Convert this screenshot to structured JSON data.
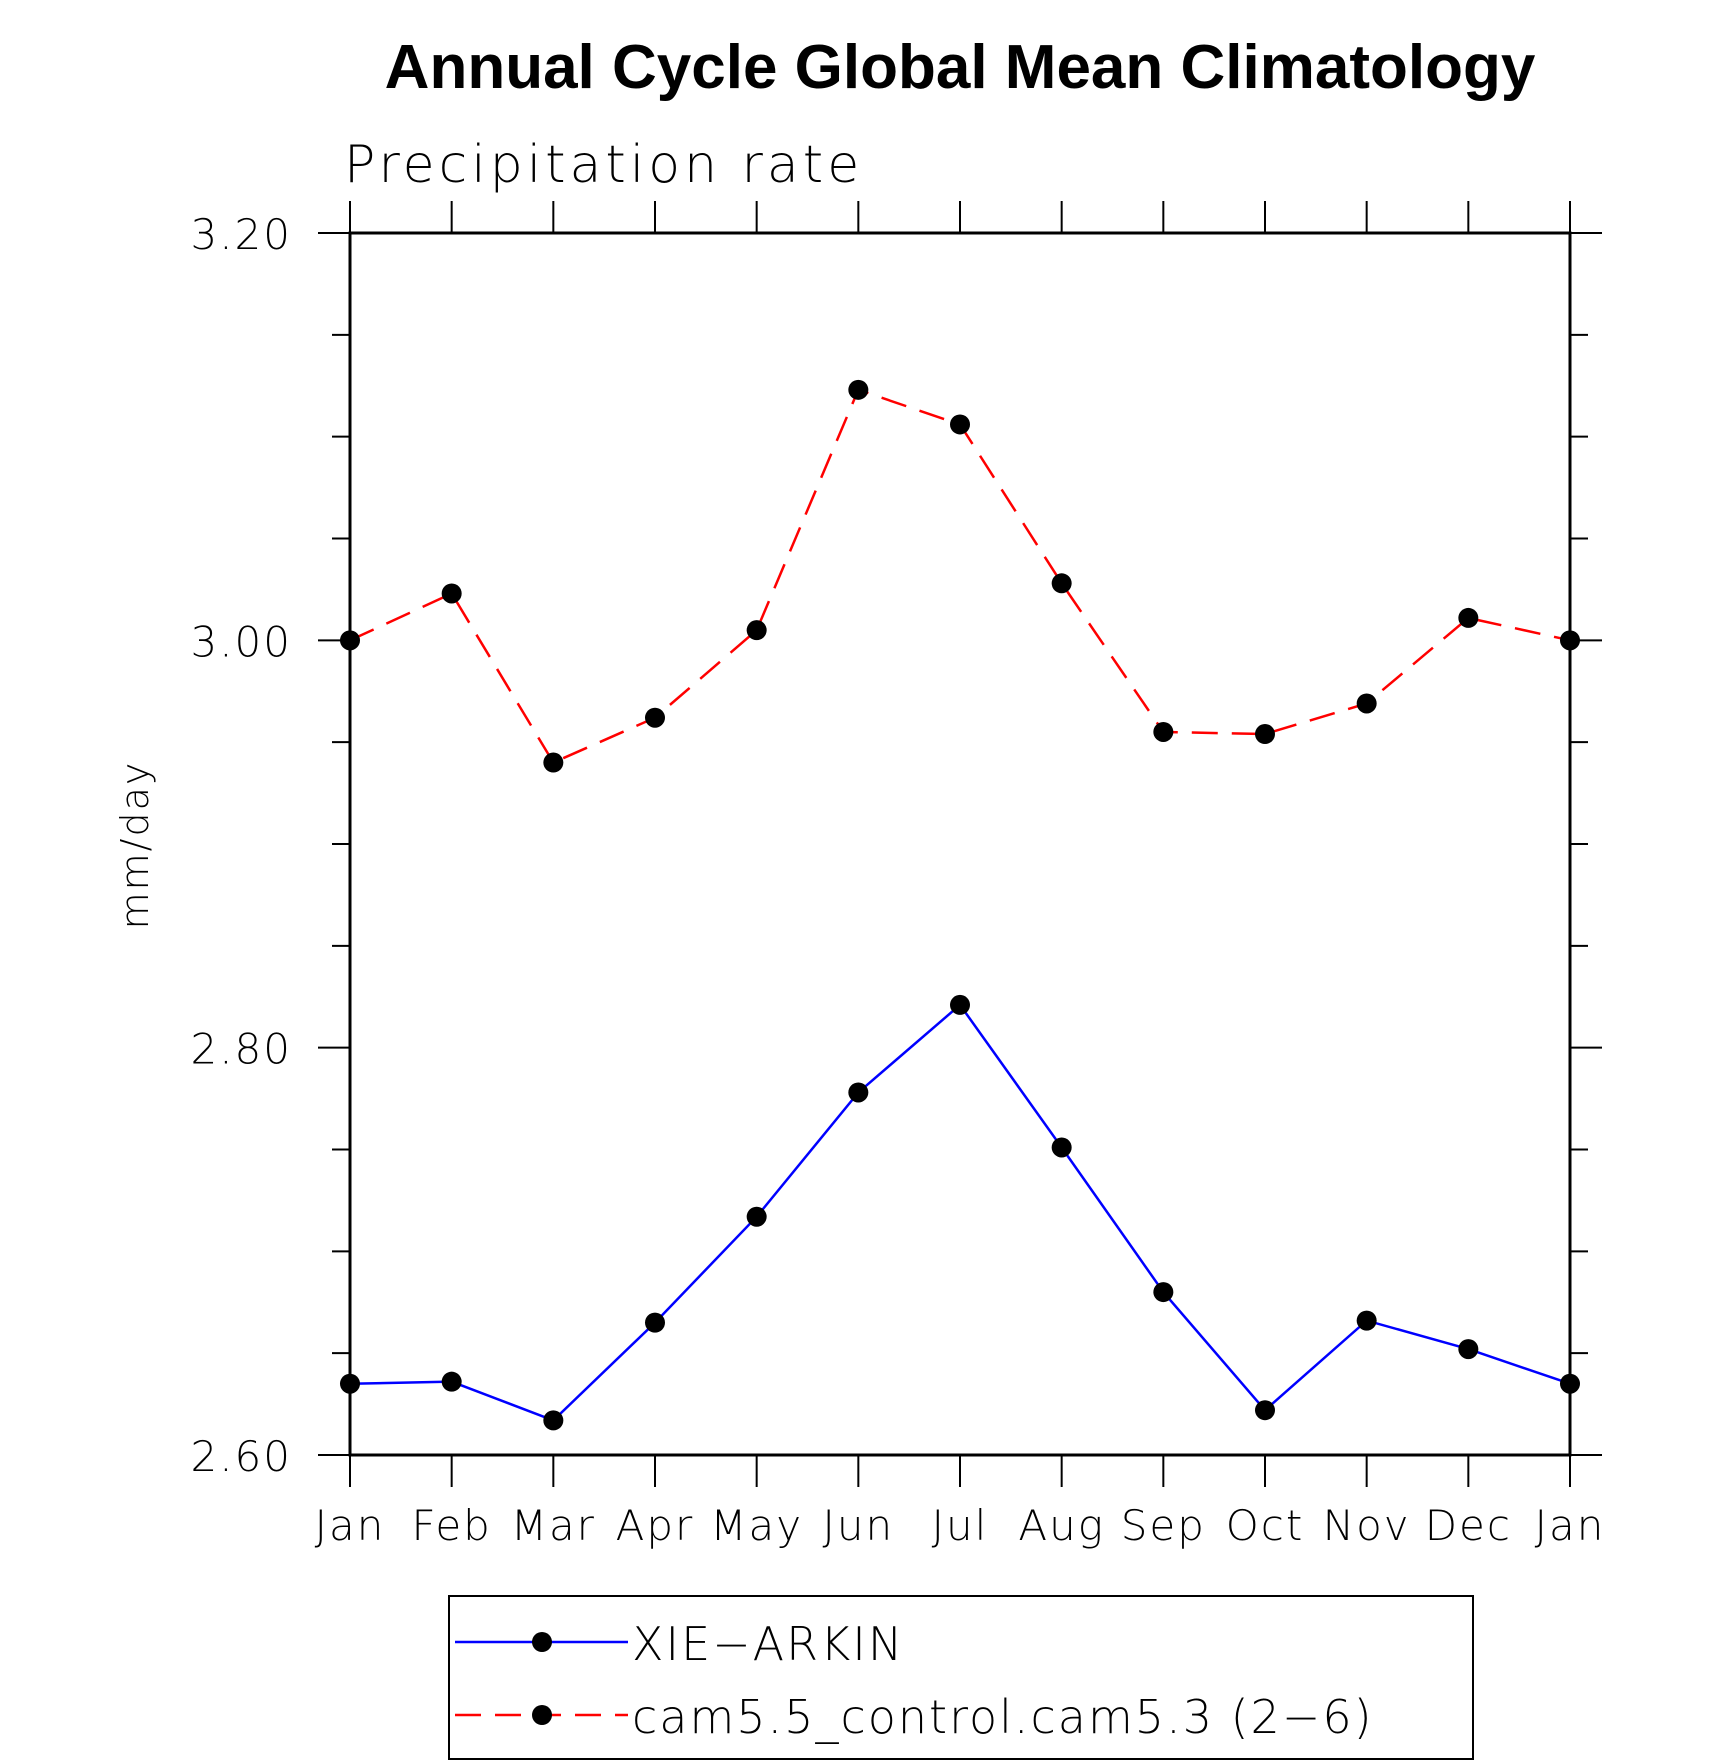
{
  "chart_data": {
    "type": "line",
    "title": "Annual Cycle Global Mean Climatology",
    "subtitle": "Precipitation rate",
    "ylabel": "mm/day",
    "xlabel": "",
    "categories": [
      "Jan",
      "Feb",
      "Mar",
      "Apr",
      "May",
      "Jun",
      "Jul",
      "Aug",
      "Sep",
      "Oct",
      "Nov",
      "Dec",
      "Jan"
    ],
    "ylim": [
      2.6,
      3.2
    ],
    "yticks": [
      "2.60",
      "2.80",
      "3.00",
      "3.20"
    ],
    "y_major_step": 0.2,
    "y_minor_step": 0.05,
    "grid": false,
    "legend_position": "bottom-center",
    "series": [
      {
        "name": "XIE−ARKIN",
        "color": "#0000ff",
        "line_style": "solid",
        "marker": "filled-circle",
        "marker_color": "#000000",
        "values": [
          2.635,
          2.636,
          2.617,
          2.665,
          2.717,
          2.778,
          2.821,
          2.751,
          2.68,
          2.622,
          2.666,
          2.652,
          2.635
        ]
      },
      {
        "name": "cam5.5_control.cam5.3 (2−6)",
        "color": "#ff0000",
        "line_style": "dashed",
        "marker": "filled-circle",
        "marker_color": "#000000",
        "values": [
          3.0,
          3.023,
          2.94,
          2.962,
          3.005,
          3.123,
          3.106,
          3.028,
          2.955,
          2.954,
          2.969,
          3.011,
          3.0
        ]
      }
    ]
  }
}
